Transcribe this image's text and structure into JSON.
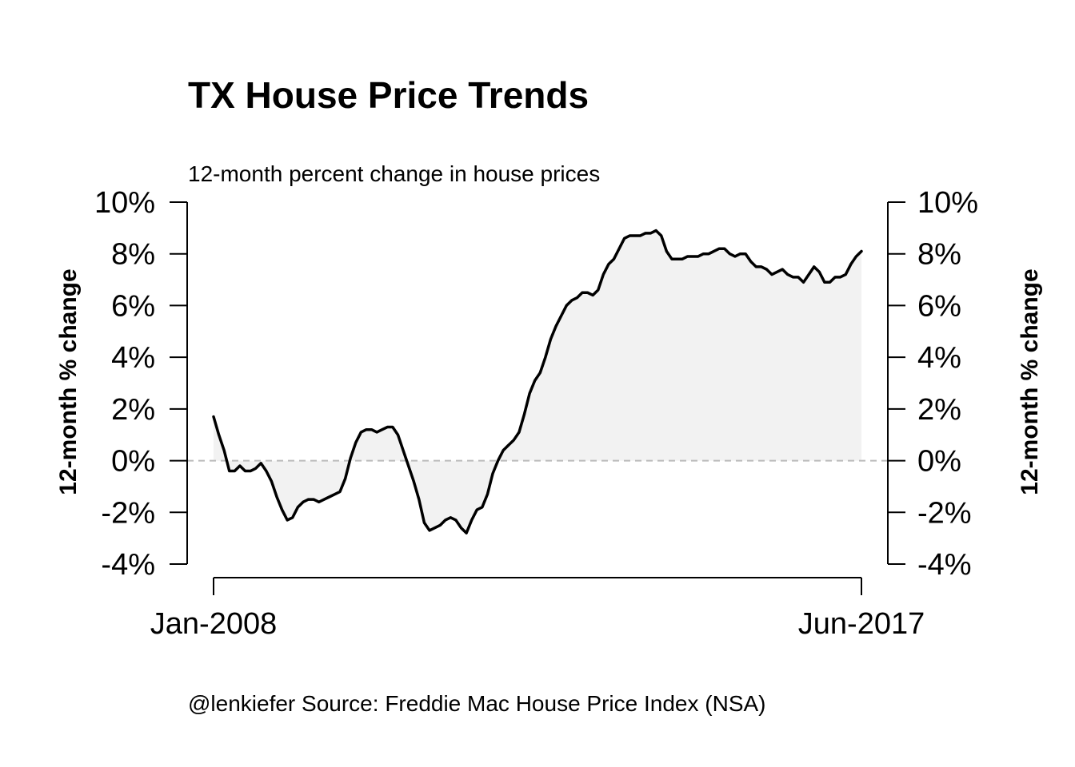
{
  "chart_data": {
    "type": "area",
    "title": "TX House Price Trends",
    "subtitle": "12-month percent change in house prices",
    "ylabel_left": "12-month % change",
    "ylabel_right": "12-month % change",
    "caption": "@lenkiefer Source: Freddie Mac House Price Index (NSA)",
    "x_start": "Jan-2008",
    "x_end": "Jun-2017",
    "x_tick_labels": [
      "Jan-2008",
      "Jun-2017"
    ],
    "ylim": [
      -4,
      10
    ],
    "y_ticks": [
      -4,
      -2,
      0,
      2,
      4,
      6,
      8,
      10
    ],
    "y_tick_labels": [
      "-4%",
      "-2%",
      "0%",
      "2%",
      "4%",
      "6%",
      "8%",
      "10%"
    ],
    "reference_line": {
      "y": 0,
      "style": "dashed",
      "color": "#bbbbbb"
    },
    "fill_color": "#f2f2f2",
    "line_color": "#000000",
    "series": [
      {
        "values": [
          1.7,
          1.0,
          0.4,
          -0.4,
          -0.4,
          -0.2,
          -0.4,
          -0.4,
          -0.3,
          -0.1,
          -0.4,
          -0.8,
          -1.4,
          -1.9,
          -2.3,
          -2.2,
          -1.8,
          -1.6,
          -1.5,
          -1.5,
          -1.6,
          -1.5,
          -1.4,
          -1.3,
          -1.2,
          -0.7,
          0.1,
          0.7,
          1.1,
          1.2,
          1.2,
          1.1,
          1.2,
          1.3,
          1.3,
          1.0,
          0.4,
          -0.2,
          -0.8,
          -1.5,
          -2.4,
          -2.7,
          -2.6,
          -2.5,
          -2.3,
          -2.2,
          -2.3,
          -2.6,
          -2.8,
          -2.3,
          -1.9,
          -1.8,
          -1.3,
          -0.5,
          0.0,
          0.4,
          0.6,
          0.8,
          1.1,
          1.8,
          2.6,
          3.1,
          3.4,
          4.0,
          4.7,
          5.2,
          5.6,
          6.0,
          6.2,
          6.3,
          6.5,
          6.5,
          6.4,
          6.6,
          7.2,
          7.6,
          7.8,
          8.2,
          8.6,
          8.7,
          8.7,
          8.7,
          8.8,
          8.8,
          8.9,
          8.7,
          8.1,
          7.8,
          7.8,
          7.8,
          7.9,
          7.9,
          7.9,
          8.0,
          8.0,
          8.1,
          8.2,
          8.2,
          8.0,
          7.9,
          8.0,
          8.0,
          7.7,
          7.5,
          7.5,
          7.4,
          7.2,
          7.3,
          7.4,
          7.2,
          7.1,
          7.1,
          6.9,
          7.2,
          7.5,
          7.3,
          6.9,
          6.9,
          7.1,
          7.1,
          7.2,
          7.6,
          7.9,
          8.1
        ]
      }
    ]
  }
}
